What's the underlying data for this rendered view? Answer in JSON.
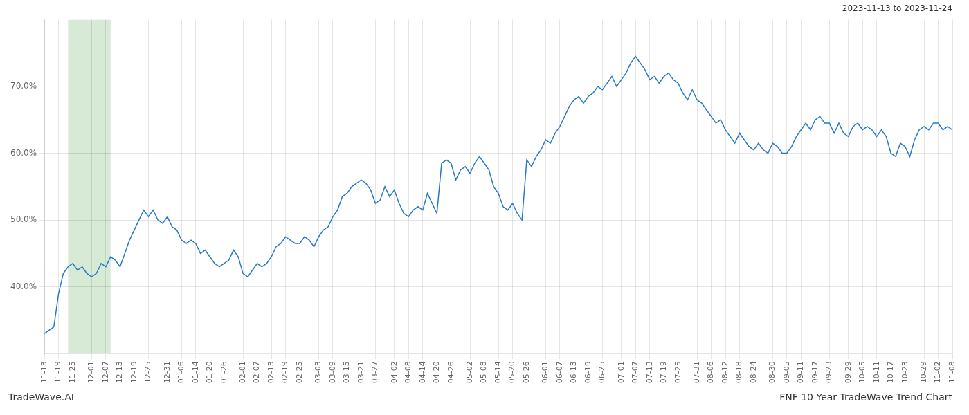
{
  "chart_data": {
    "type": "line",
    "title": "FNF 10 Year TradeWave Trend Chart",
    "subtitle": "2023-11-13 to 2023-11-24",
    "annotations": [
      "TradeWave.AI"
    ],
    "categories": [
      "11-13",
      null,
      null,
      "11-19",
      null,
      null,
      "11-25",
      null,
      null,
      null,
      "12-01",
      null,
      null,
      "12-07",
      null,
      null,
      "12-13",
      null,
      null,
      "12-19",
      null,
      null,
      "12-25",
      null,
      null,
      null,
      "12-31",
      null,
      null,
      "01-06",
      null,
      null,
      "01-14",
      null,
      null,
      "01-20",
      null,
      null,
      "01-26",
      null,
      null,
      null,
      "02-01",
      null,
      null,
      "02-07",
      null,
      null,
      "02-13",
      null,
      null,
      "02-19",
      null,
      null,
      "02-25",
      null,
      null,
      null,
      "03-03",
      null,
      null,
      "03-09",
      null,
      null,
      "03-15",
      null,
      null,
      "03-21",
      null,
      null,
      "03-27",
      null,
      null,
      null,
      "04-02",
      null,
      null,
      "04-08",
      null,
      null,
      "04-14",
      null,
      null,
      "04-20",
      null,
      null,
      "04-26",
      null,
      null,
      null,
      "05-02",
      null,
      null,
      "05-08",
      null,
      null,
      "05-14",
      null,
      null,
      "05-20",
      null,
      null,
      "05-26",
      null,
      null,
      null,
      "06-01",
      null,
      null,
      "06-07",
      null,
      null,
      "06-13",
      null,
      null,
      "06-19",
      null,
      null,
      "06-25",
      null,
      null,
      null,
      "07-01",
      null,
      null,
      "07-07",
      null,
      null,
      "07-13",
      null,
      null,
      "07-19",
      null,
      null,
      "07-25",
      null,
      null,
      null,
      "07-31",
      null,
      null,
      "08-06",
      null,
      null,
      "08-12",
      null,
      null,
      "08-18",
      null,
      null,
      "08-24",
      null,
      null,
      null,
      "08-30",
      null,
      null,
      "09-05",
      null,
      null,
      "09-11",
      null,
      null,
      "09-17",
      null,
      null,
      "09-23",
      null,
      null,
      null,
      "09-29",
      null,
      null,
      "10-05",
      null,
      null,
      "10-11",
      null,
      null,
      "10-17",
      null,
      null,
      "10-23",
      null,
      null,
      null,
      "10-29",
      null,
      null,
      "11-02",
      null,
      null,
      "11-08"
    ],
    "values": [
      33.0,
      33.5,
      34.0,
      39.0,
      42.0,
      43.0,
      43.5,
      42.5,
      43.0,
      42.0,
      41.5,
      42.0,
      43.5,
      43.0,
      44.5,
      44.0,
      43.0,
      45.0,
      47.0,
      48.5,
      50.0,
      51.5,
      50.5,
      51.5,
      50.0,
      49.5,
      50.5,
      49.0,
      48.5,
      47.0,
      46.5,
      47.0,
      46.5,
      45.0,
      45.5,
      44.5,
      43.5,
      43.0,
      43.5,
      44.0,
      45.5,
      44.5,
      42.0,
      41.5,
      42.5,
      43.5,
      43.0,
      43.5,
      44.5,
      46.0,
      46.5,
      47.5,
      47.0,
      46.5,
      46.5,
      47.5,
      47.0,
      46.0,
      47.5,
      48.5,
      49.0,
      50.5,
      51.5,
      53.5,
      54.0,
      55.0,
      55.5,
      56.0,
      55.5,
      54.5,
      52.5,
      53.0,
      55.0,
      53.5,
      54.5,
      52.5,
      51.0,
      50.5,
      51.5,
      52.0,
      51.5,
      54.0,
      52.5,
      51.0,
      58.5,
      59.0,
      58.5,
      56.0,
      57.5,
      58.0,
      57.0,
      58.5,
      59.5,
      58.5,
      57.5,
      55.0,
      54.0,
      52.0,
      51.5,
      52.5,
      51.0,
      50.0,
      59.0,
      58.0,
      59.5,
      60.5,
      62.0,
      61.5,
      63.0,
      64.0,
      65.5,
      67.0,
      68.0,
      68.5,
      67.5,
      68.5,
      69.0,
      70.0,
      69.5,
      70.5,
      71.5,
      70.0,
      71.0,
      72.0,
      73.5,
      74.5,
      73.5,
      72.5,
      71.0,
      71.5,
      70.5,
      71.5,
      72.0,
      71.0,
      70.5,
      69.0,
      68.0,
      69.5,
      68.0,
      67.5,
      66.5,
      65.5,
      64.5,
      65.0,
      63.5,
      62.5,
      61.5,
      63.0,
      62.0,
      61.0,
      60.5,
      61.5,
      60.5,
      60.0,
      61.5,
      61.0,
      60.0,
      60.0,
      61.0,
      62.5,
      63.5,
      64.5,
      63.5,
      65.0,
      65.5,
      64.5,
      64.5,
      63.0,
      64.5,
      63.0,
      62.5,
      64.0,
      64.5,
      63.5,
      64.0,
      63.5,
      62.5,
      63.5,
      62.5,
      60.0,
      59.5,
      61.5,
      61.0,
      59.5,
      62.0,
      63.5,
      64.0,
      63.5,
      64.5,
      64.5,
      63.5,
      64.0,
      63.5
    ],
    "color": "#2878c8",
    "highlight": {
      "x": [
        5,
        14
      ],
      "color": "#d6ead6"
    },
    "ylim": [
      30,
      80
    ],
    "yticks": [
      {
        "value": 40,
        "label": "40.0%"
      },
      {
        "value": 50,
        "label": "50.0%"
      },
      {
        "value": 60,
        "label": "60.0%"
      },
      {
        "value": 70,
        "label": "70.0%"
      }
    ],
    "grid": true
  }
}
